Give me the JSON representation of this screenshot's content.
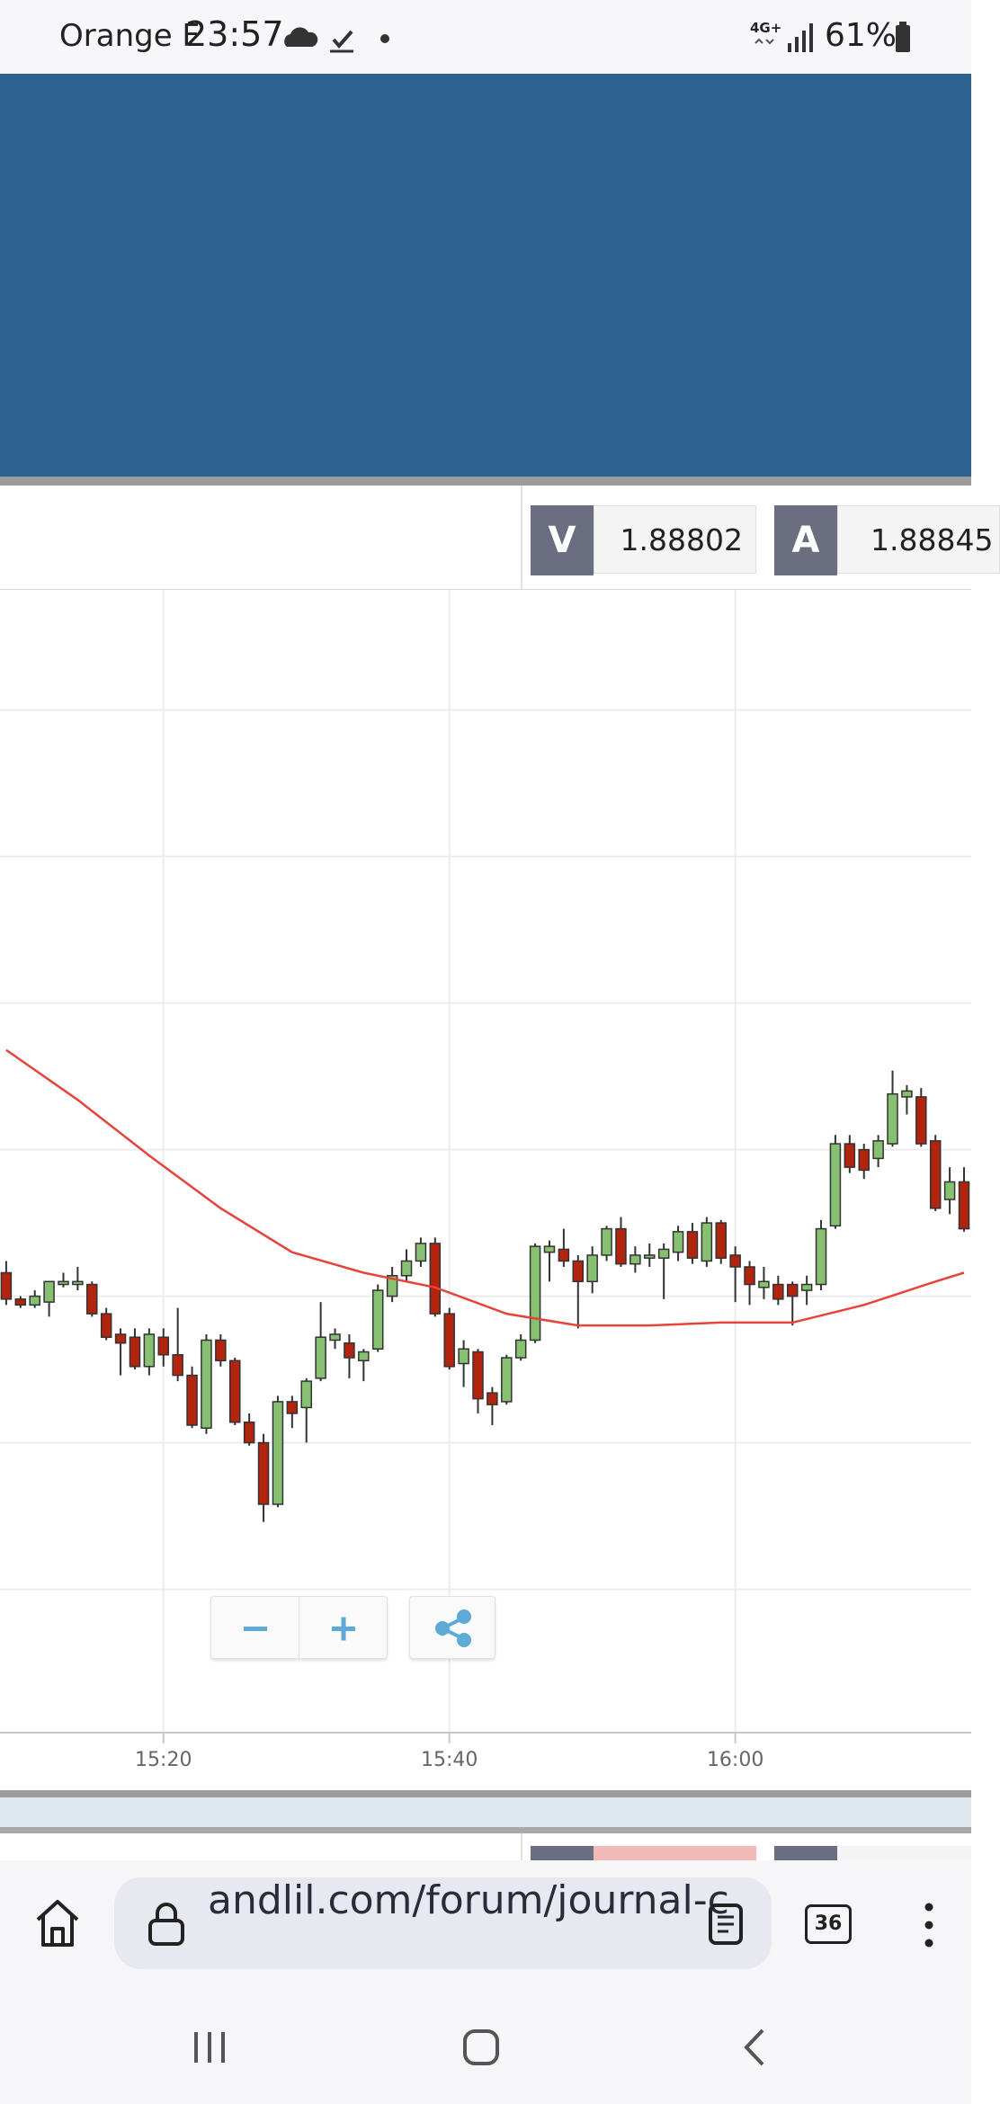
{
  "status_bar": {
    "carrier": "Orange F",
    "time": "23:57",
    "network": "4G+",
    "battery": "61%"
  },
  "quote": {
    "bid_label": "V",
    "bid": "1.88802",
    "ask_label": "A",
    "ask": "1.88845"
  },
  "chart_data": {
    "type": "candlestick",
    "x": [
      "15:09",
      "15:10",
      "15:11",
      "15:12",
      "15:13",
      "15:14",
      "15:15",
      "15:16",
      "15:17",
      "15:18",
      "15:19",
      "15:20",
      "15:21",
      "15:22",
      "15:23",
      "15:24",
      "15:25",
      "15:26",
      "15:27",
      "15:28",
      "15:29",
      "15:30",
      "15:31",
      "15:32",
      "15:33",
      "15:34",
      "15:35",
      "15:36",
      "15:37",
      "15:38",
      "15:39",
      "15:40",
      "15:41",
      "15:42",
      "15:43",
      "15:44",
      "15:45",
      "15:46",
      "15:47",
      "15:48",
      "15:49",
      "15:50",
      "15:51",
      "15:52",
      "15:53",
      "15:54",
      "15:55",
      "15:56",
      "15:57",
      "15:58",
      "15:59",
      "16:00",
      "16:01",
      "16:02",
      "16:03",
      "16:04",
      "16:05",
      "16:06",
      "16:07",
      "16:08",
      "16:09",
      "16:10",
      "16:11",
      "16:12",
      "16:13",
      "16:14",
      "16:15",
      "16:16"
    ],
    "open": [
      1.88808,
      1.88799,
      1.88797,
      1.88798,
      1.88804,
      1.88804,
      1.88804,
      1.88794,
      1.88787,
      1.88786,
      1.88776,
      1.88786,
      1.8878,
      1.88773,
      1.88755,
      1.88785,
      1.88778,
      1.88757,
      1.8875,
      1.88729,
      1.88764,
      1.88762,
      1.88772,
      1.88785,
      1.88784,
      1.88778,
      1.88782,
      1.888,
      1.88807,
      1.88812,
      1.88818,
      1.88794,
      1.88777,
      1.88781,
      1.88767,
      1.88764,
      1.88779,
      1.88785,
      1.88815,
      1.88816,
      1.88812,
      1.88805,
      1.88814,
      1.88823,
      1.88811,
      1.88813,
      1.88813,
      1.88815,
      1.88822,
      1.88812,
      1.88825,
      1.88814,
      1.8881,
      1.88803,
      1.88804,
      1.88804,
      1.88802,
      1.88804,
      1.88824,
      1.88852,
      1.8885,
      1.88847,
      1.88852,
      1.88868,
      1.88868,
      1.88853,
      1.88833,
      1.88839
    ],
    "high": [
      1.88812,
      1.888,
      1.88802,
      1.88805,
      1.88808,
      1.8881,
      1.88805,
      1.88796,
      1.88789,
      1.88789,
      1.88789,
      1.88789,
      1.88796,
      1.88776,
      1.88787,
      1.88787,
      1.88779,
      1.8876,
      1.88753,
      1.88766,
      1.88766,
      1.88772,
      1.88798,
      1.88789,
      1.88787,
      1.88782,
      1.88804,
      1.8881,
      1.88816,
      1.8882,
      1.8882,
      1.88796,
      1.88785,
      1.88782,
      1.88769,
      1.8878,
      1.88787,
      1.88818,
      1.88819,
      1.88823,
      1.88814,
      1.88817,
      1.88824,
      1.88827,
      1.88817,
      1.88818,
      1.88818,
      1.88824,
      1.88825,
      1.88827,
      1.88826,
      1.88817,
      1.88812,
      1.8881,
      1.88807,
      1.88805,
      1.88807,
      1.88826,
      1.88855,
      1.88855,
      1.88852,
      1.88855,
      1.88877,
      1.88872,
      1.88871,
      1.88855,
      1.88844,
      1.88844
    ],
    "low": [
      1.88797,
      1.88796,
      1.88796,
      1.88793,
      1.88803,
      1.88802,
      1.88793,
      1.88785,
      1.88773,
      1.88775,
      1.88773,
      1.88776,
      1.88771,
      1.88755,
      1.88753,
      1.88776,
      1.88756,
      1.88749,
      1.88723,
      1.88728,
      1.88755,
      1.8875,
      1.88771,
      1.88782,
      1.88772,
      1.88771,
      1.88781,
      1.88798,
      1.88805,
      1.8881,
      1.88793,
      1.88775,
      1.88769,
      1.8876,
      1.88756,
      1.88763,
      1.88778,
      1.88784,
      1.88805,
      1.8881,
      1.88789,
      1.88801,
      1.88812,
      1.8881,
      1.88808,
      1.8881,
      1.88799,
      1.88812,
      1.88811,
      1.8881,
      1.88811,
      1.88798,
      1.88797,
      1.88799,
      1.88797,
      1.8879,
      1.88797,
      1.88802,
      1.88823,
      1.88842,
      1.8884,
      1.88844,
      1.88851,
      1.88862,
      1.88851,
      1.88829,
      1.88828,
      1.88822
    ],
    "close": [
      1.88799,
      1.88797,
      1.888,
      1.88805,
      1.88805,
      1.88805,
      1.88794,
      1.88786,
      1.88784,
      1.88776,
      1.88787,
      1.8878,
      1.88773,
      1.88756,
      1.88785,
      1.88778,
      1.88757,
      1.8875,
      1.88729,
      1.88764,
      1.8876,
      1.88771,
      1.88786,
      1.88787,
      1.88779,
      1.88781,
      1.88802,
      1.88807,
      1.88812,
      1.88818,
      1.88794,
      1.88776,
      1.88782,
      1.88765,
      1.88763,
      1.88779,
      1.88785,
      1.88817,
      1.88817,
      1.88812,
      1.88805,
      1.88814,
      1.88823,
      1.88811,
      1.88814,
      1.88814,
      1.88816,
      1.88822,
      1.88813,
      1.88825,
      1.88813,
      1.8881,
      1.88804,
      1.88805,
      1.88799,
      1.888,
      1.88804,
      1.88823,
      1.88852,
      1.88844,
      1.88843,
      1.88853,
      1.88869,
      1.8887,
      1.88852,
      1.8883,
      1.88839,
      1.88823
    ],
    "up_color": "#86c070",
    "down_color": "#b3240e",
    "ma": {
      "color": "#e8433b",
      "x": [
        "15:09",
        "15:14",
        "15:19",
        "15:24",
        "15:29",
        "15:34",
        "15:39",
        "15:44",
        "15:49",
        "15:54",
        "15:59",
        "16:04",
        "16:09",
        "16:14",
        "16:16"
      ],
      "values": [
        1.88884,
        1.88867,
        1.88848,
        1.8883,
        1.88815,
        1.88808,
        1.88803,
        1.88794,
        1.8879,
        1.8879,
        1.88791,
        1.88791,
        1.88797,
        1.88805,
        1.88808
      ]
    },
    "xlim": [
      "15:08",
      "16:16"
    ],
    "xticks": [
      "15:20",
      "15:40",
      "16:00"
    ],
    "ylim": [
      1.88652,
      1.89041
    ],
    "ygrid": [
      1.887,
      1.8875,
      1.888,
      1.8885,
      1.889,
      1.8895,
      1.89
    ],
    "grid": true
  },
  "url_bar": {
    "url": "andlil.com/forum/journal-c",
    "tabs": "36"
  }
}
